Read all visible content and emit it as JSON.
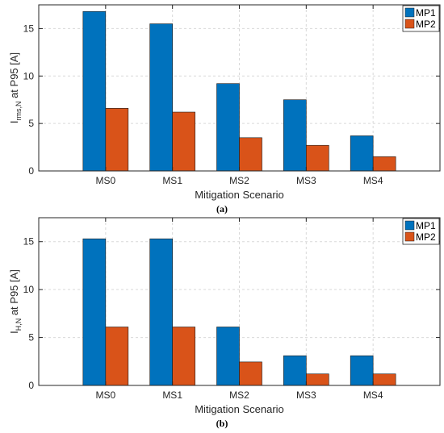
{
  "colors": {
    "MP1": "#0072BD",
    "MP2": "#D95319"
  },
  "chart_data": [
    {
      "type": "bar",
      "panel_label": "(a)",
      "categories": [
        "MS0",
        "MS1",
        "MS2",
        "MS3",
        "MS4"
      ],
      "series": [
        {
          "name": "MP1",
          "values": [
            16.8,
            15.5,
            9.2,
            7.5,
            3.7
          ]
        },
        {
          "name": "MP2",
          "values": [
            6.6,
            6.2,
            3.5,
            2.7,
            1.5
          ]
        }
      ],
      "xlabel": "Mitigation Scenario",
      "ylabel_main": "I",
      "ylabel_sub": "rms,N",
      "ylabel_rest": "  at  P95   [A]",
      "ylim": [
        0,
        17.5
      ],
      "yticks": [
        0,
        5,
        10,
        15
      ],
      "grid": true,
      "legend": "top-right"
    },
    {
      "type": "bar",
      "panel_label": "(b)",
      "categories": [
        "MS0",
        "MS1",
        "MS2",
        "MS3",
        "MS4"
      ],
      "series": [
        {
          "name": "MP1",
          "values": [
            15.3,
            15.3,
            6.1,
            3.1,
            3.1
          ]
        },
        {
          "name": "MP2",
          "values": [
            6.1,
            6.1,
            2.45,
            1.2,
            1.2
          ]
        }
      ],
      "xlabel": "Mitigation Scenario",
      "ylabel_main": "I",
      "ylabel_sub": "H,N",
      "ylabel_rest": "  at  P95   [A]",
      "ylim": [
        0,
        17.5
      ],
      "yticks": [
        0,
        5,
        10,
        15
      ],
      "grid": true,
      "legend": "top-right"
    }
  ]
}
